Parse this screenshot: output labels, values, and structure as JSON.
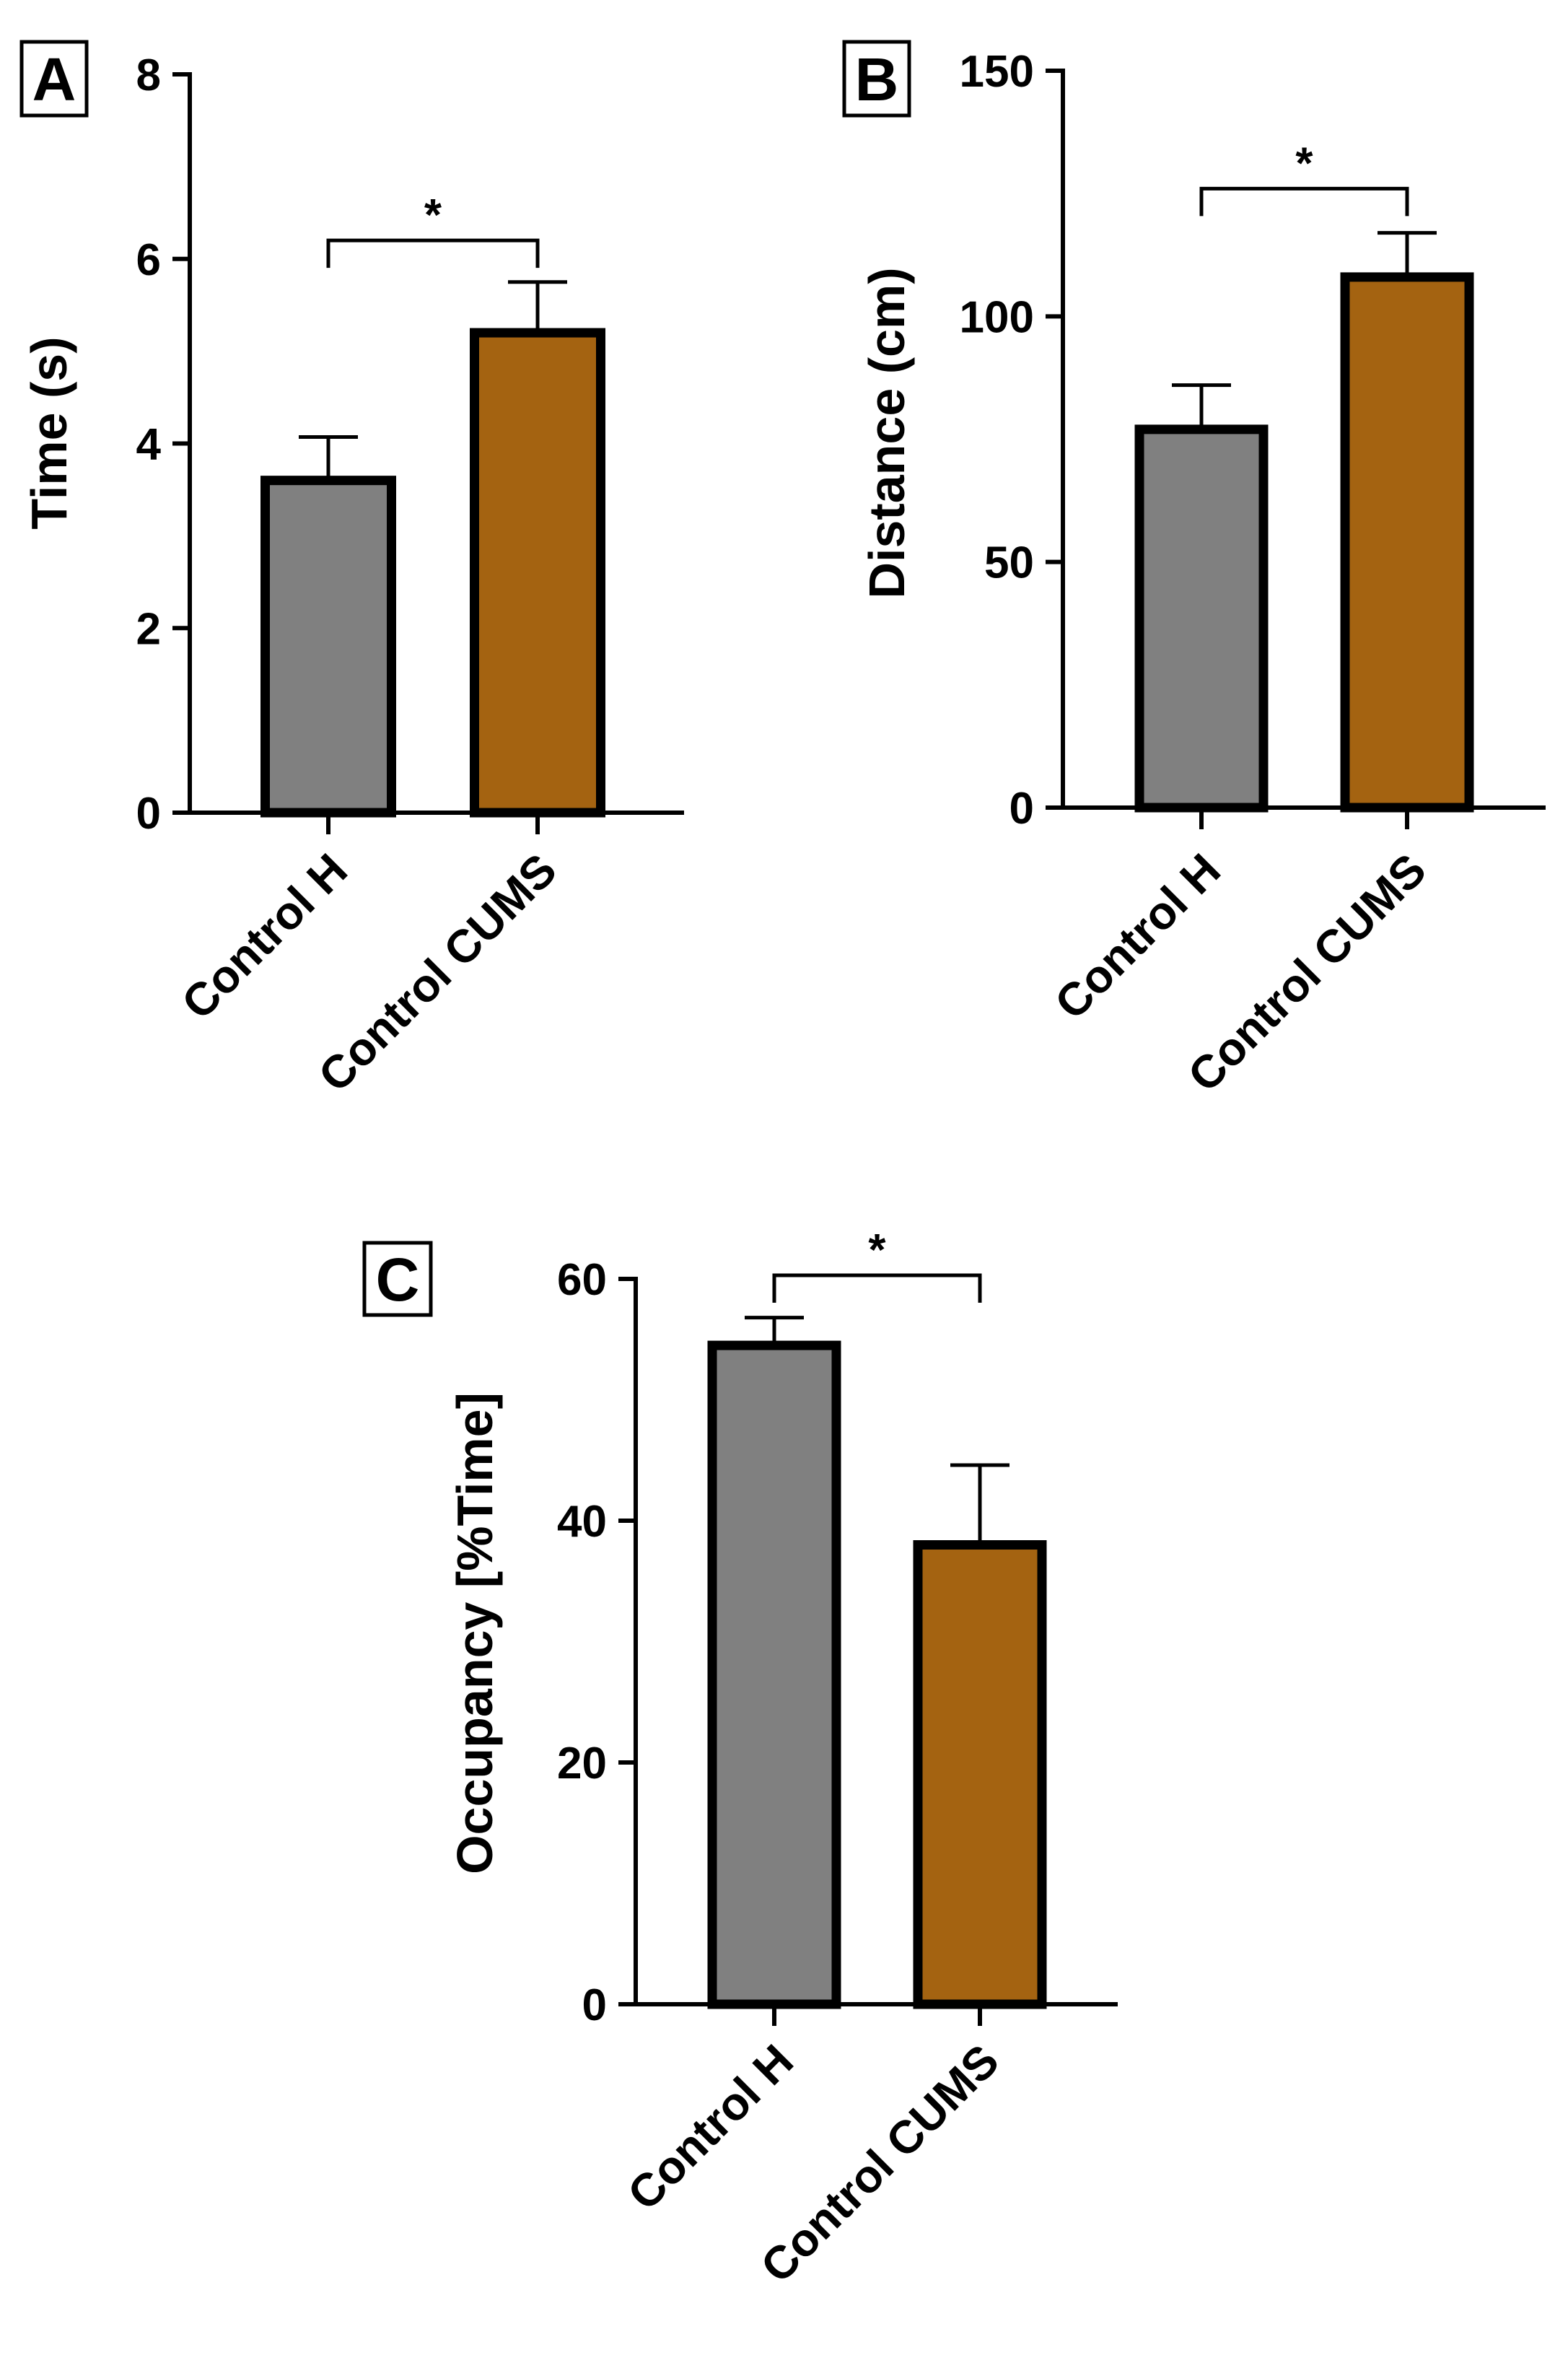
{
  "colors": {
    "control_h": "#808080",
    "control_cums": "#A46311",
    "ink": "#000000"
  },
  "chart_data": [
    {
      "panel": "A",
      "type": "bar",
      "categories": [
        "Control H",
        "Control CUMS"
      ],
      "values": [
        3.6,
        5.2
      ],
      "errors": [
        0.47,
        0.55
      ],
      "xlabel": "",
      "ylabel": "Time (s)",
      "ylim": [
        0,
        8
      ],
      "yticks": [
        0,
        2,
        4,
        6,
        8
      ],
      "ytick_labels": [
        "0",
        "2",
        "4",
        "6",
        "8"
      ],
      "significance": {
        "pair": [
          0,
          1
        ],
        "label": "*",
        "y": 6.2
      }
    },
    {
      "panel": "B",
      "type": "bar",
      "categories": [
        "Control H",
        "Control CUMS"
      ],
      "values": [
        77,
        108
      ],
      "errors": [
        9,
        9
      ],
      "xlabel": "",
      "ylabel": "Distance (cm)",
      "ylim": [
        0,
        150
      ],
      "yticks": [
        0,
        50,
        100,
        150
      ],
      "ytick_labels": [
        "0",
        "50",
        "100",
        "150"
      ],
      "significance": {
        "pair": [
          0,
          1
        ],
        "label": "*",
        "y": 126
      }
    },
    {
      "panel": "C",
      "type": "bar",
      "categories": [
        "Control H",
        "Control CUMS"
      ],
      "values": [
        54.5,
        38
      ],
      "errors": [
        2.3,
        6.6
      ],
      "xlabel": "",
      "ylabel": "Occupancy [%Time]",
      "ylim": [
        0,
        60
      ],
      "yticks": [
        0,
        20,
        40,
        60
      ],
      "ytick_labels": [
        "0",
        "20",
        "40",
        "60"
      ],
      "significance": {
        "pair": [
          0,
          1
        ],
        "label": "*",
        "y": 60.3
      }
    }
  ]
}
